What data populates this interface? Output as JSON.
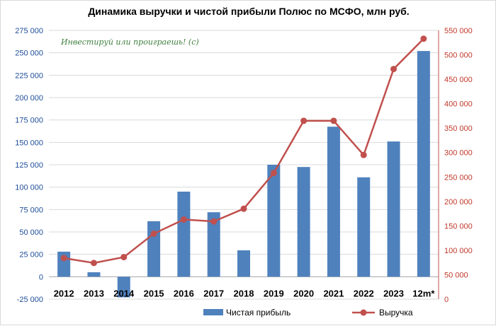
{
  "chart_data": {
    "type": "bar+line",
    "title": "Динамика выручки и чистой прибыли Полюс по МСФО, млн руб.",
    "watermark": "Инвестируй или проиграешь! (с)",
    "categories": [
      "2012",
      "2013",
      "2014",
      "2015",
      "2016",
      "2017",
      "2018",
      "2019",
      "2020",
      "2021",
      "2022",
      "2023",
      "12m*"
    ],
    "series": [
      {
        "name": "Чистая прибыль",
        "type": "bar",
        "axis": "left",
        "color": "#4f81bd",
        "values": [
          28000,
          5000,
          -23000,
          62000,
          95000,
          72000,
          29500,
          125000,
          122500,
          167500,
          111000,
          151000,
          252000
        ]
      },
      {
        "name": "Выручка",
        "type": "line",
        "axis": "right",
        "color": "#c0504d",
        "values": [
          84000,
          74000,
          86000,
          134000,
          163000,
          159000,
          185000,
          258000,
          365000,
          365000,
          295000,
          471000,
          533000
        ]
      }
    ],
    "left_axis": {
      "ylim": [
        -25000,
        275000
      ],
      "ticks": [
        -25000,
        0,
        25000,
        50000,
        75000,
        100000,
        125000,
        150000,
        175000,
        200000,
        225000,
        250000,
        275000
      ],
      "tick_labels": [
        "-25 000",
        "0",
        "25 000",
        "50 000",
        "75 000",
        "100 000",
        "125 000",
        "150 000",
        "175 000",
        "200 000",
        "225 000",
        "250 000",
        "275 000"
      ]
    },
    "right_axis": {
      "ylim": [
        0,
        550000
      ],
      "ticks": [
        0,
        50000,
        100000,
        150000,
        200000,
        250000,
        300000,
        350000,
        400000,
        450000,
        500000,
        550000
      ],
      "tick_labels": [
        "0",
        "50 000",
        "100 000",
        "150 000",
        "200 000",
        "250 000",
        "300 000",
        "350 000",
        "400 000",
        "450 000",
        "500 000",
        "550 000"
      ]
    },
    "grid": true,
    "legend_position": "bottom"
  }
}
